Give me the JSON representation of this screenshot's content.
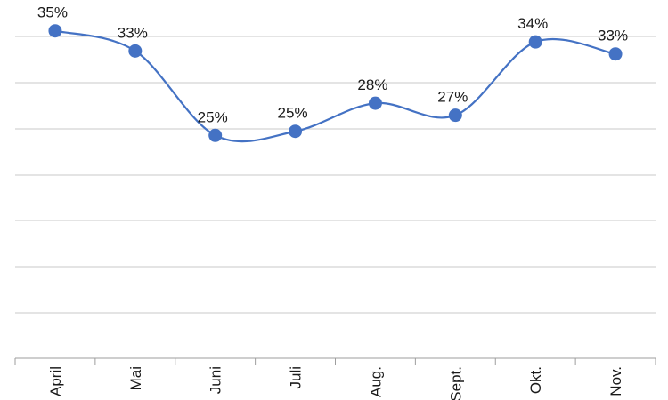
{
  "chart_data": {
    "type": "line",
    "categories": [
      "April",
      "Mai",
      "Juni",
      "Juli",
      "Aug.",
      "Sept.",
      "Okt.",
      "Nov."
    ],
    "values": [
      35,
      33,
      25,
      25,
      28,
      27,
      34,
      33
    ],
    "value_labels": [
      "35%",
      "33%",
      "25%",
      "25%",
      "28%",
      "27%",
      "34%",
      "33%"
    ],
    "marker_values": [
      35.2,
      33.2,
      24.8,
      25.2,
      28.0,
      26.8,
      34.1,
      32.9
    ],
    "ylim": [
      0,
      38
    ],
    "y_unit": "%",
    "smooth": true,
    "grid": true,
    "legend": "none",
    "colors": {
      "series": "#4472c4",
      "grid": "#c8c8c8",
      "text": "#1a1a1a"
    }
  }
}
